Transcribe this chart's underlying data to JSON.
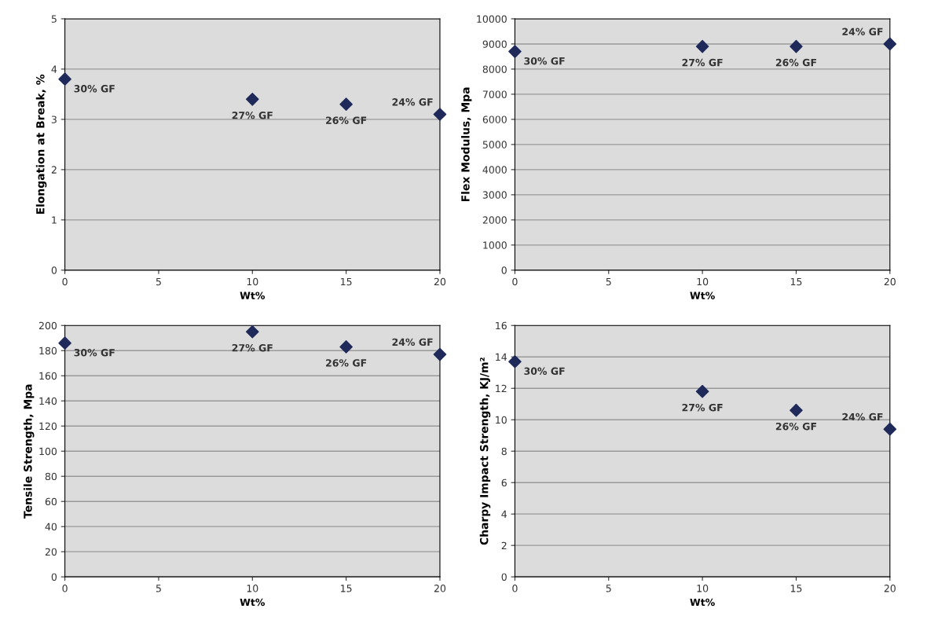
{
  "chart_data": [
    {
      "type": "scatter",
      "xlabel": "Wt%",
      "ylabel": "Elongation at Break, %",
      "x": [
        0,
        10,
        15,
        20
      ],
      "series": [
        {
          "color": "#1f2a5a",
          "values": [
            3.8,
            3.4,
            3.3,
            3.1
          ]
        }
      ],
      "xlim": [
        0,
        20
      ],
      "xticks": [
        0,
        5,
        10,
        15,
        20
      ],
      "ylim": [
        0,
        5
      ],
      "yticks": [
        0,
        1,
        2,
        3,
        4,
        5
      ],
      "grid": "y",
      "marker": "diamond",
      "annotations": [
        {
          "text": "30% GF",
          "x": 0,
          "y": 3.8
        },
        {
          "text": "27% GF",
          "x": 10,
          "y": 3.4
        },
        {
          "text": "26% GF",
          "x": 15,
          "y": 3.3
        },
        {
          "text": "24% GF",
          "x": 20,
          "y": 3.1
        }
      ]
    },
    {
      "type": "scatter",
      "xlabel": "Wt%",
      "ylabel": "Flex Modulus, Mpa",
      "x": [
        0,
        10,
        15,
        20
      ],
      "series": [
        {
          "color": "#1f2a5a",
          "values": [
            8700,
            8900,
            8900,
            9000
          ]
        }
      ],
      "xlim": [
        0,
        20
      ],
      "xticks": [
        0,
        5,
        10,
        15,
        20
      ],
      "ylim": [
        0,
        10000
      ],
      "yticks": [
        0,
        1000,
        2000,
        3000,
        4000,
        5000,
        6000,
        7000,
        8000,
        9000,
        10000
      ],
      "grid": "y",
      "marker": "diamond",
      "annotations": [
        {
          "text": "30% GF",
          "x": 0,
          "y": 8700
        },
        {
          "text": "27% GF",
          "x": 10,
          "y": 8900
        },
        {
          "text": "26% GF",
          "x": 15,
          "y": 8900
        },
        {
          "text": "24% GF",
          "x": 20,
          "y": 9000
        }
      ]
    },
    {
      "type": "scatter",
      "xlabel": "Wt%",
      "ylabel": "Tensile Strength, Mpa",
      "x": [
        0,
        10,
        15,
        20
      ],
      "series": [
        {
          "color": "#1f2a5a",
          "values": [
            186,
            195,
            183,
            177
          ]
        }
      ],
      "xlim": [
        0,
        20
      ],
      "xticks": [
        0,
        5,
        10,
        15,
        20
      ],
      "ylim": [
        0,
        200
      ],
      "yticks": [
        0,
        20,
        40,
        60,
        80,
        100,
        120,
        140,
        160,
        180,
        200
      ],
      "grid": "y",
      "marker": "diamond",
      "annotations": [
        {
          "text": "30% GF",
          "x": 0,
          "y": 186
        },
        {
          "text": "27% GF",
          "x": 10,
          "y": 195
        },
        {
          "text": "26% GF",
          "x": 15,
          "y": 183
        },
        {
          "text": "24% GF",
          "x": 20,
          "y": 177
        }
      ]
    },
    {
      "type": "scatter",
      "xlabel": "Wt%",
      "ylabel": "Charpy Impact Strength, KJ/m²",
      "x": [
        0,
        10,
        15,
        20
      ],
      "series": [
        {
          "color": "#1f2a5a",
          "values": [
            13.7,
            11.8,
            10.6,
            9.4
          ]
        }
      ],
      "xlim": [
        0,
        20
      ],
      "xticks": [
        0,
        5,
        10,
        15,
        20
      ],
      "ylim": [
        0,
        16
      ],
      "yticks": [
        0,
        2,
        4,
        6,
        8,
        10,
        12,
        14,
        16
      ],
      "grid": "y",
      "marker": "diamond",
      "annotations": [
        {
          "text": "30% GF",
          "x": 0,
          "y": 13.7
        },
        {
          "text": "27% GF",
          "x": 10,
          "y": 11.8
        },
        {
          "text": "26% GF",
          "x": 15,
          "y": 10.6
        },
        {
          "text": "24% GF",
          "x": 20,
          "y": 9.4
        }
      ]
    }
  ]
}
